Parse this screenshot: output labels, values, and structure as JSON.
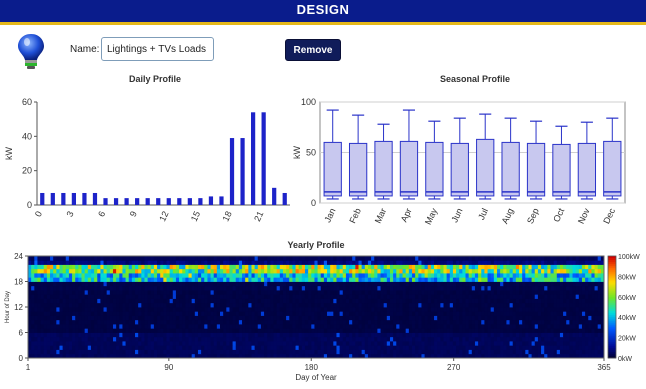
{
  "header": {
    "title": "DESIGN"
  },
  "form": {
    "name_label": "Name:",
    "name_value": "Lightings + TVs Loads",
    "remove_label": "Remove"
  },
  "colors": {
    "header_bg": "#0a1c8c",
    "header_stripe": "#e5b81a",
    "bar": "#1d23c9",
    "box_fill": "#c8c8ef",
    "box_edge": "#2a33c9"
  },
  "chart_data": [
    {
      "type": "bar",
      "title": "Daily Profile",
      "ylabel": "kW",
      "xlabel": "",
      "ylim": [
        0,
        60
      ],
      "yticks": [
        0,
        20,
        40,
        60
      ],
      "xtick_labels": [
        "0",
        "3",
        "6",
        "9",
        "12",
        "15",
        "18",
        "21"
      ],
      "categories": [
        "0",
        "1",
        "2",
        "3",
        "4",
        "5",
        "6",
        "7",
        "8",
        "9",
        "10",
        "11",
        "12",
        "13",
        "14",
        "15",
        "16",
        "17",
        "18",
        "19",
        "20",
        "21",
        "22",
        "23"
      ],
      "values": [
        7,
        7,
        7,
        7,
        7,
        7,
        4,
        4,
        4,
        4,
        4,
        4,
        4,
        4,
        4,
        4,
        5,
        5,
        39,
        39,
        54,
        54,
        10,
        7
      ],
      "grid": false
    },
    {
      "type": "box",
      "title": "Seasonal Profile",
      "ylabel": "kW",
      "ylim": [
        0,
        100
      ],
      "yticks": [
        0,
        50,
        100
      ],
      "categories": [
        "Jan",
        "Feb",
        "Mar",
        "Apr",
        "May",
        "Jun",
        "Jul",
        "Aug",
        "Sep",
        "Oct",
        "Nov",
        "Dec"
      ],
      "whisker_high": [
        92,
        87,
        78,
        92,
        81,
        84,
        88,
        84,
        81,
        76,
        80,
        84
      ],
      "q3": [
        60,
        59,
        61,
        61,
        60,
        59,
        63,
        60,
        59,
        58,
        59,
        61
      ],
      "median": [
        11,
        11,
        11,
        11,
        11,
        11,
        11,
        11,
        11,
        11,
        11,
        11
      ],
      "q1": [
        7,
        7,
        7,
        7,
        7,
        7,
        7,
        7,
        7,
        7,
        7,
        7
      ],
      "whisker_low": [
        4,
        4,
        4,
        4,
        4,
        4,
        4,
        4,
        4,
        4,
        4,
        4
      ],
      "grid": true
    },
    {
      "type": "heatmap",
      "title": "Yearly Profile",
      "xlabel": "Day of Year",
      "ylabel": "Hour of Day",
      "xlim": [
        1,
        365
      ],
      "ylim": [
        0,
        24
      ],
      "xticks": [
        1,
        90,
        180,
        270,
        365
      ],
      "yticks": [
        0,
        6,
        12,
        18,
        24
      ],
      "colorbar_ticks": [
        "100kW",
        "80kW",
        "60kW",
        "40kW",
        "20kW",
        "0kW"
      ],
      "colorbar_range": [
        0,
        100
      ],
      "hourly_typical_kW": [
        7,
        7,
        7,
        7,
        7,
        7,
        4,
        4,
        4,
        4,
        4,
        4,
        4,
        4,
        4,
        4,
        5,
        5,
        39,
        39,
        54,
        54,
        10,
        7
      ]
    }
  ]
}
